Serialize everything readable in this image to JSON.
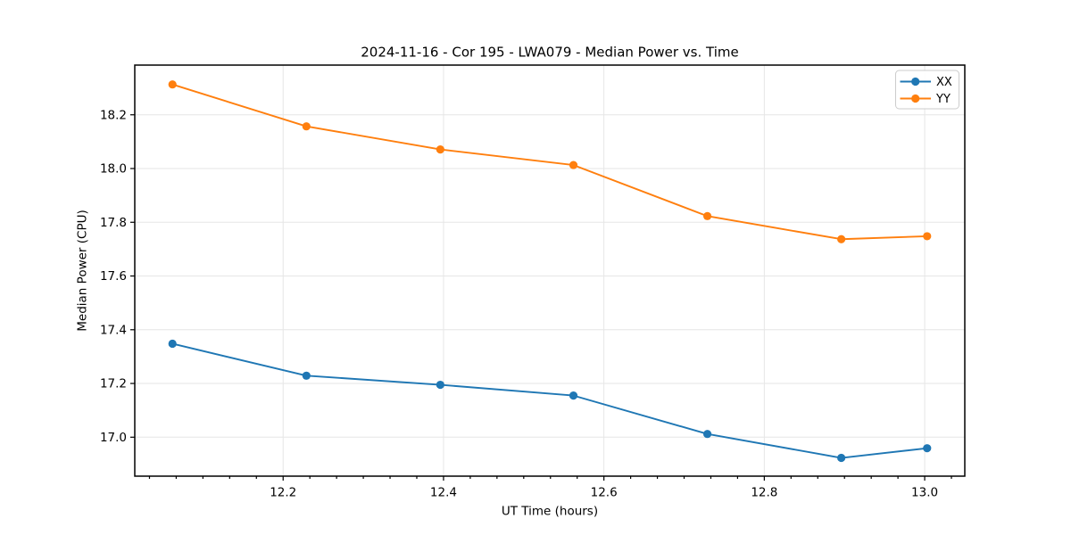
{
  "chart_data": {
    "type": "line",
    "title": "2024-11-16 - Cor 195 - LWA079 - Median Power vs. Time",
    "xlabel": "UT Time (hours)",
    "ylabel": "Median Power (CPU)",
    "x": [
      12.062,
      12.229,
      12.396,
      12.562,
      12.729,
      12.896,
      13.003
    ],
    "series": [
      {
        "name": "XX",
        "color": "#1f77b4",
        "values": [
          17.348,
          17.229,
          17.195,
          17.155,
          17.012,
          16.923,
          16.959
        ]
      },
      {
        "name": "YY",
        "color": "#ff7f0e",
        "values": [
          18.313,
          18.157,
          18.071,
          18.013,
          17.823,
          17.737,
          17.748
        ]
      }
    ],
    "xlim": [
      12.015,
      13.05
    ],
    "ylim": [
      16.855,
      18.385
    ],
    "x_ticks": [
      12.2,
      12.4,
      12.6,
      12.8,
      13.0
    ],
    "x_tick_labels": [
      "12.2",
      "12.4",
      "12.6",
      "12.8",
      "13.0"
    ],
    "x_minor_ticks_per_hour": 30,
    "y_ticks": [
      17.0,
      17.2,
      17.4,
      17.6,
      17.8,
      18.0,
      18.2
    ],
    "y_tick_labels": [
      "17.0",
      "17.2",
      "17.4",
      "17.6",
      "17.8",
      "18.0",
      "18.2"
    ],
    "grid": true,
    "legend": {
      "position": "upper right",
      "entries": [
        "XX",
        "YY"
      ]
    },
    "marker": "circle",
    "style": {
      "grid_color": "#e6e6e6",
      "spine_color": "#000000",
      "background": "#ffffff"
    }
  }
}
